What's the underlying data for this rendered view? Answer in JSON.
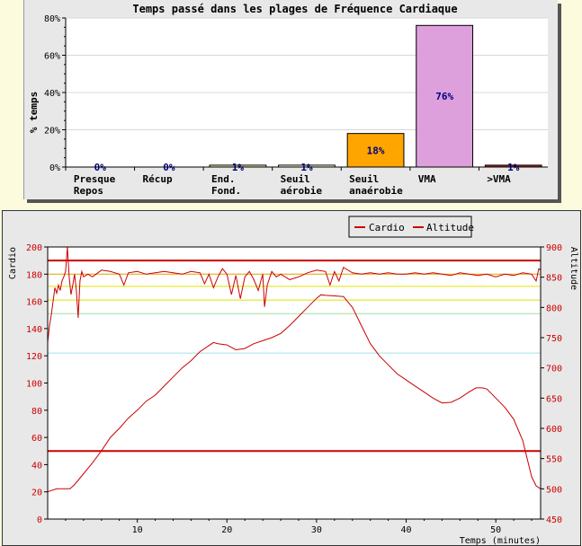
{
  "chart_data": [
    {
      "type": "bar",
      "title": "Temps passé dans les plages de Fréquence Cardiaque",
      "ylabel": "% temps",
      "xlabel": "",
      "ylim": [
        0,
        80
      ],
      "y_ticks": [
        "0%",
        "20%",
        "40%",
        "60%",
        "80%"
      ],
      "y_tick_values": [
        0,
        20,
        40,
        60,
        80
      ],
      "grid": true,
      "categories": [
        [
          "Presque",
          "Repos"
        ],
        [
          "Récup"
        ],
        [
          "End.",
          "Fond."
        ],
        [
          "Seuil",
          "aérobie"
        ],
        [
          "Seuil",
          "anaérobie"
        ],
        [
          "VMA"
        ],
        [
          ">VMA"
        ]
      ],
      "values": [
        0,
        0,
        1,
        1,
        18,
        76,
        1
      ],
      "value_labels": [
        "0%",
        "0%",
        "1%",
        "1%",
        "18%",
        "76%",
        "1%"
      ],
      "colors": [
        "#dddddd",
        "#dddddd",
        "#e5f2b5",
        "#f4ffd8",
        "#ffa500",
        "#dda0dd",
        "#b22222"
      ],
      "colors_accent": {
        "label": "#000080"
      }
    },
    {
      "type": "line",
      "xlabel": "Temps (minutes)",
      "ylabel": "Cardio",
      "y2label": "Altitude",
      "xlim": [
        0,
        55
      ],
      "ylim": [
        0,
        200
      ],
      "y2lim": [
        450,
        900
      ],
      "x_ticks": [
        "10",
        "20",
        "30",
        "40",
        "50"
      ],
      "x_tick_values": [
        10,
        20,
        30,
        40,
        50
      ],
      "y_ticks": [
        "0",
        "20",
        "40",
        "60",
        "80",
        "100",
        "120",
        "140",
        "160",
        "180",
        "200"
      ],
      "y_tick_values": [
        0,
        20,
        40,
        60,
        80,
        100,
        120,
        140,
        160,
        180,
        200
      ],
      "y2_ticks": [
        "450",
        "500",
        "550",
        "600",
        "650",
        "700",
        "750",
        "800",
        "850",
        "900"
      ],
      "y2_tick_values": [
        450,
        500,
        550,
        600,
        650,
        700,
        750,
        800,
        850,
        900
      ],
      "legend": {
        "position": "top-right",
        "items": [
          "Cardio",
          "Altitude"
        ]
      },
      "zone_lines": [
        {
          "y": 190,
          "color": "#cc0000"
        },
        {
          "y": 180,
          "color": "#e0a000"
        },
        {
          "y": 171,
          "color": "#e0e000"
        },
        {
          "y": 161,
          "color": "#e0e000"
        },
        {
          "y": 151,
          "color": "#a0e0a0"
        },
        {
          "y": 122,
          "color": "#a0e0e0"
        },
        {
          "y": 50,
          "color": "#cc0000"
        }
      ],
      "series": [
        {
          "name": "Cardio",
          "color": "#cc0000",
          "points": [
            [
              0,
              130
            ],
            [
              0.2,
              142
            ],
            [
              0.4,
              150
            ],
            [
              0.6,
              160
            ],
            [
              0.8,
              170
            ],
            [
              1,
              166
            ],
            [
              1.2,
              172
            ],
            [
              1.4,
              168
            ],
            [
              1.6,
              175
            ],
            [
              1.8,
              178
            ],
            [
              2,
              182
            ],
            [
              2.2,
              200
            ],
            [
              2.4,
              178
            ],
            [
              2.6,
              165
            ],
            [
              2.8,
              172
            ],
            [
              3,
              180
            ],
            [
              3.2,
              168
            ],
            [
              3.4,
              148
            ],
            [
              3.6,
              175
            ],
            [
              3.8,
              182
            ],
            [
              4,
              178
            ],
            [
              4.5,
              180
            ],
            [
              5,
              178
            ],
            [
              6,
              183
            ],
            [
              7,
              182
            ],
            [
              8,
              180
            ],
            [
              8.5,
              172
            ],
            [
              9,
              181
            ],
            [
              10,
              182
            ],
            [
              11,
              180
            ],
            [
              12,
              181
            ],
            [
              13,
              182
            ],
            [
              14,
              181
            ],
            [
              15,
              180
            ],
            [
              16,
              182
            ],
            [
              17,
              181
            ],
            [
              17.5,
              173
            ],
            [
              18,
              180
            ],
            [
              18.5,
              170
            ],
            [
              19,
              178
            ],
            [
              19.5,
              184
            ],
            [
              20,
              180
            ],
            [
              20.5,
              165
            ],
            [
              21,
              179
            ],
            [
              21.5,
              162
            ],
            [
              22,
              178
            ],
            [
              22.5,
              182
            ],
            [
              23,
              176
            ],
            [
              23.5,
              168
            ],
            [
              24,
              180
            ],
            [
              24.2,
              156
            ],
            [
              24.5,
              172
            ],
            [
              25,
              182
            ],
            [
              25.5,
              178
            ],
            [
              26,
              180
            ],
            [
              27,
              176
            ],
            [
              28,
              178
            ],
            [
              29,
              181
            ],
            [
              30,
              183
            ],
            [
              31,
              182
            ],
            [
              31.5,
              172
            ],
            [
              32,
              182
            ],
            [
              32.5,
              175
            ],
            [
              33,
              185
            ],
            [
              34,
              181
            ],
            [
              35,
              180
            ],
            [
              36,
              181
            ],
            [
              37,
              180
            ],
            [
              38,
              181
            ],
            [
              39,
              180
            ],
            [
              40,
              180
            ],
            [
              41,
              181
            ],
            [
              42,
              180
            ],
            [
              43,
              181
            ],
            [
              44,
              180
            ],
            [
              45,
              179
            ],
            [
              46,
              181
            ],
            [
              47,
              180
            ],
            [
              48,
              179
            ],
            [
              49,
              180
            ],
            [
              50,
              178
            ],
            [
              51,
              180
            ],
            [
              52,
              179
            ],
            [
              53,
              181
            ],
            [
              54,
              180
            ],
            [
              54.5,
              175
            ],
            [
              54.8,
              184
            ],
            [
              55,
              183
            ]
          ]
        },
        {
          "name": "Altitude",
          "color": "#cc0000",
          "points": [
            [
              0,
              495
            ],
            [
              1,
              500
            ],
            [
              2,
              500
            ],
            [
              2.5,
              500
            ],
            [
              3,
              507
            ],
            [
              4,
              525
            ],
            [
              5,
              543
            ],
            [
              6,
              563
            ],
            [
              7,
              585
            ],
            [
              8,
              600
            ],
            [
              9,
              617
            ],
            [
              10,
              630
            ],
            [
              11,
              645
            ],
            [
              12,
              655
            ],
            [
              13,
              670
            ],
            [
              14,
              685
            ],
            [
              15,
              700
            ],
            [
              16,
              712
            ],
            [
              17,
              727
            ],
            [
              18,
              737
            ],
            [
              18.5,
              742
            ],
            [
              19,
              740
            ],
            [
              20,
              738
            ],
            [
              21,
              730
            ],
            [
              22,
              732
            ],
            [
              23,
              740
            ],
            [
              24,
              745
            ],
            [
              25,
              750
            ],
            [
              26,
              757
            ],
            [
              27,
              770
            ],
            [
              28,
              785
            ],
            [
              29,
              800
            ],
            [
              30,
              815
            ],
            [
              30.5,
              821
            ],
            [
              31,
              820
            ],
            [
              32,
              819
            ],
            [
              33,
              818
            ],
            [
              34,
              800
            ],
            [
              35,
              770
            ],
            [
              36,
              740
            ],
            [
              37,
              720
            ],
            [
              38,
              705
            ],
            [
              39,
              690
            ],
            [
              40,
              680
            ],
            [
              41,
              670
            ],
            [
              42,
              660
            ],
            [
              43,
              650
            ],
            [
              44,
              642
            ],
            [
              45,
              643
            ],
            [
              46,
              650
            ],
            [
              47,
              660
            ],
            [
              47.8,
              667
            ],
            [
              48.5,
              667
            ],
            [
              49,
              665
            ],
            [
              50,
              650
            ],
            [
              51,
              635
            ],
            [
              52,
              615
            ],
            [
              53,
              580
            ],
            [
              54,
              520
            ],
            [
              54.5,
              505
            ],
            [
              55,
              500
            ]
          ]
        }
      ]
    }
  ]
}
